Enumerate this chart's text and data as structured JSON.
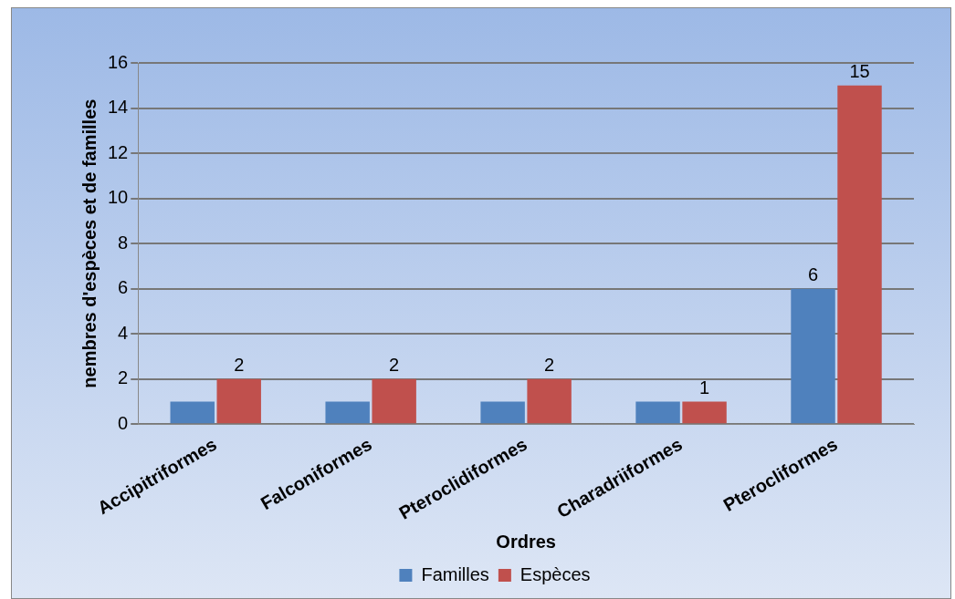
{
  "chart_data": {
    "type": "bar",
    "xlabel": "Ordres",
    "ylabel": "nembres d'espèces et de familles",
    "categories": [
      "Accipitriformes",
      "Falconiformes",
      "Pteroclidiformes",
      "Charadriiformes",
      "Pterocliformes"
    ],
    "series": [
      {
        "name": "Familles",
        "color": "#4f81bd",
        "values": [
          1,
          1,
          1,
          1,
          6
        ],
        "value_labels": [
          null,
          null,
          null,
          null,
          "6"
        ]
      },
      {
        "name": "Espèces",
        "color": "#c0504d",
        "values": [
          2,
          2,
          2,
          1,
          15
        ],
        "value_labels": [
          "2",
          "2",
          "2",
          "1",
          "15"
        ]
      }
    ],
    "ylim": [
      0,
      16
    ],
    "yticks": [
      0,
      2,
      4,
      6,
      8,
      10,
      12,
      14,
      16
    ],
    "grid": "y",
    "legend": "bottom"
  }
}
